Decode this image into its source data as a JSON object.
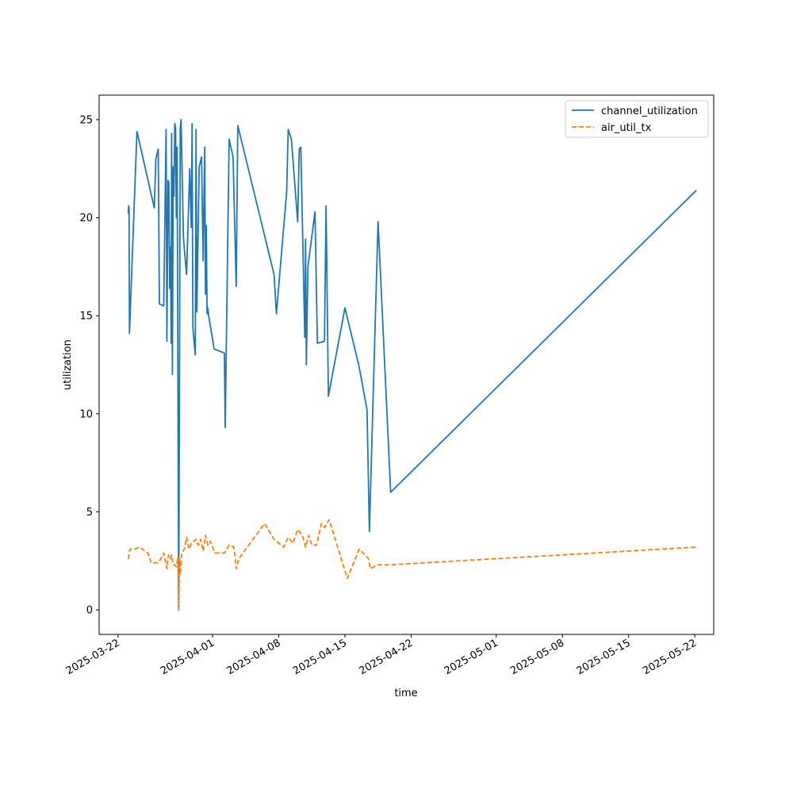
{
  "chart_data": {
    "type": "line",
    "title": "",
    "xlabel": "time",
    "ylabel": "utilization",
    "xlim": [
      "2025-03-20T00:00",
      "2025-05-24T00:00"
    ],
    "ylim": [
      -1.25,
      26.25
    ],
    "x_ticks": [
      "2025-03-22",
      "2025-04-01",
      "2025-04-08",
      "2025-04-15",
      "2025-04-22",
      "2025-05-01",
      "2025-05-08",
      "2025-05-15",
      "2025-05-22"
    ],
    "y_ticks": [
      0,
      5,
      10,
      15,
      20,
      25
    ],
    "grid": false,
    "legend": {
      "position": "top-right"
    },
    "series": [
      {
        "name": "channel_utilization",
        "color": "#1f77b4",
        "style": "solid",
        "points": [
          [
            "2025-03-23T02:00",
            20.2
          ],
          [
            "2025-03-23T03:00",
            20.6
          ],
          [
            "2025-03-23T04:00",
            20.5
          ],
          [
            "2025-03-23T05:00",
            14.1
          ],
          [
            "2025-03-24T00:00",
            24.4
          ],
          [
            "2025-03-25T20:00",
            20.5
          ],
          [
            "2025-03-26T00:00",
            23.0
          ],
          [
            "2025-03-26T06:00",
            23.5
          ],
          [
            "2025-03-26T09:00",
            15.6
          ],
          [
            "2025-03-26T20:00",
            15.5
          ],
          [
            "2025-03-27T02:00",
            24.5
          ],
          [
            "2025-03-27T04:00",
            13.7
          ],
          [
            "2025-03-27T07:00",
            21.9
          ],
          [
            "2025-03-27T09:00",
            21.8
          ],
          [
            "2025-03-27T11:00",
            16.4
          ],
          [
            "2025-03-27T13:00",
            18.5
          ],
          [
            "2025-03-27T15:00",
            13.6
          ],
          [
            "2025-03-27T16:00",
            24.3
          ],
          [
            "2025-03-27T18:00",
            12.0
          ],
          [
            "2025-03-27T20:00",
            22.6
          ],
          [
            "2025-03-27T22:00",
            21.1
          ],
          [
            "2025-03-28T00:00",
            24.8
          ],
          [
            "2025-03-28T02:00",
            24.6
          ],
          [
            "2025-03-28T04:00",
            20.0
          ],
          [
            "2025-03-28T06:00",
            23.6
          ],
          [
            "2025-03-28T10:00",
            0.0
          ],
          [
            "2025-03-28T14:00",
            24.6
          ],
          [
            "2025-03-28T16:00",
            25.0
          ],
          [
            "2025-03-28T22:00",
            19.0
          ],
          [
            "2025-03-29T02:00",
            18.0
          ],
          [
            "2025-03-29T06:00",
            17.1
          ],
          [
            "2025-03-29T14:00",
            22.5
          ],
          [
            "2025-03-29T18:00",
            19.5
          ],
          [
            "2025-03-29T20:00",
            24.8
          ],
          [
            "2025-03-29T22:00",
            14.4
          ],
          [
            "2025-03-30T04:00",
            13.0
          ],
          [
            "2025-03-30T06:00",
            24.5
          ],
          [
            "2025-03-30T08:00",
            15.2
          ],
          [
            "2025-03-30T14:00",
            22.6
          ],
          [
            "2025-03-30T20:00",
            23.1
          ],
          [
            "2025-03-31T00:00",
            17.8
          ],
          [
            "2025-03-31T04:00",
            23.6
          ],
          [
            "2025-03-31T06:00",
            16.1
          ],
          [
            "2025-03-31T08:00",
            19.6
          ],
          [
            "2025-03-31T10:00",
            15.1
          ],
          [
            "2025-03-31T12:00",
            15.4
          ],
          [
            "2025-03-31T14:00",
            15.0
          ],
          [
            "2025-04-01T04:00",
            13.3
          ],
          [
            "2025-04-02T06:00",
            13.1
          ],
          [
            "2025-04-02T08:00",
            9.3
          ],
          [
            "2025-04-02T18:00",
            24.0
          ],
          [
            "2025-04-03T04:00",
            23.1
          ],
          [
            "2025-04-03T12:00",
            16.5
          ],
          [
            "2025-04-03T16:00",
            24.7
          ],
          [
            "2025-04-07T12:00",
            17.1
          ],
          [
            "2025-04-07T18:00",
            15.1
          ],
          [
            "2025-04-08T20:00",
            21.3
          ],
          [
            "2025-04-09T00:00",
            24.5
          ],
          [
            "2025-04-09T08:00",
            24.0
          ],
          [
            "2025-04-10T00:00",
            19.8
          ],
          [
            "2025-04-10T04:00",
            23.5
          ],
          [
            "2025-04-10T08:00",
            23.6
          ],
          [
            "2025-04-10T18:00",
            13.9
          ],
          [
            "2025-04-10T20:00",
            18.9
          ],
          [
            "2025-04-10T22:00",
            12.5
          ],
          [
            "2025-04-11T02:00",
            17.5
          ],
          [
            "2025-04-11T20:00",
            20.3
          ],
          [
            "2025-04-12T02:00",
            13.6
          ],
          [
            "2025-04-12T20:00",
            13.7
          ],
          [
            "2025-04-13T00:00",
            20.6
          ],
          [
            "2025-04-13T06:00",
            10.9
          ],
          [
            "2025-04-15T00:00",
            15.4
          ],
          [
            "2025-04-16T12:00",
            12.4
          ],
          [
            "2025-04-17T08:00",
            10.2
          ],
          [
            "2025-04-17T14:00",
            4.0
          ],
          [
            "2025-04-18T12:00",
            19.8
          ],
          [
            "2025-04-19T20:00",
            6.0
          ],
          [
            "2025-05-22T04:00",
            21.4
          ]
        ]
      },
      {
        "name": "air_util_tx",
        "color": "#ff7f0e",
        "style": "dashed",
        "points": [
          [
            "2025-03-23T02:00",
            2.6
          ],
          [
            "2025-03-23T06:00",
            3.1
          ],
          [
            "2025-03-23T18:00",
            3.1
          ],
          [
            "2025-03-24T06:00",
            3.2
          ],
          [
            "2025-03-25T04:00",
            2.9
          ],
          [
            "2025-03-25T12:00",
            2.4
          ],
          [
            "2025-03-26T06:00",
            2.4
          ],
          [
            "2025-03-26T12:00",
            2.6
          ],
          [
            "2025-03-26T20:00",
            2.9
          ],
          [
            "2025-03-27T00:00",
            2.5
          ],
          [
            "2025-03-27T04:00",
            2.1
          ],
          [
            "2025-03-27T08:00",
            2.8
          ],
          [
            "2025-03-27T12:00",
            2.6
          ],
          [
            "2025-03-27T16:00",
            2.8
          ],
          [
            "2025-03-27T20:00",
            2.3
          ],
          [
            "2025-03-28T00:00",
            2.3
          ],
          [
            "2025-03-28T04:00",
            2.2
          ],
          [
            "2025-03-28T08:00",
            2.7
          ],
          [
            "2025-03-28T10:00",
            0.0
          ],
          [
            "2025-03-28T12:00",
            2.6
          ],
          [
            "2025-03-28T14:00",
            1.8
          ],
          [
            "2025-03-28T18:00",
            2.9
          ],
          [
            "2025-03-29T00:00",
            3.1
          ],
          [
            "2025-03-29T06:00",
            3.7
          ],
          [
            "2025-03-29T12:00",
            3.1
          ],
          [
            "2025-03-29T18:00",
            3.4
          ],
          [
            "2025-03-30T00:00",
            3.5
          ],
          [
            "2025-03-30T06:00",
            3.6
          ],
          [
            "2025-03-30T12:00",
            3.3
          ],
          [
            "2025-03-30T18:00",
            3.6
          ],
          [
            "2025-03-31T00:00",
            3.0
          ],
          [
            "2025-03-31T06:00",
            3.8
          ],
          [
            "2025-03-31T12:00",
            3.3
          ],
          [
            "2025-03-31T18:00",
            3.5
          ],
          [
            "2025-04-01T06:00",
            2.9
          ],
          [
            "2025-04-02T06:00",
            2.9
          ],
          [
            "2025-04-02T18:00",
            3.3
          ],
          [
            "2025-04-03T06:00",
            3.2
          ],
          [
            "2025-04-03T12:00",
            2.1
          ],
          [
            "2025-04-03T18:00",
            2.6
          ],
          [
            "2025-04-06T12:00",
            4.4
          ],
          [
            "2025-04-07T12:00",
            3.6
          ],
          [
            "2025-04-08T12:00",
            3.2
          ],
          [
            "2025-04-09T00:00",
            3.7
          ],
          [
            "2025-04-09T12:00",
            3.4
          ],
          [
            "2025-04-10T00:00",
            4.1
          ],
          [
            "2025-04-10T12:00",
            3.8
          ],
          [
            "2025-04-10T20:00",
            3.2
          ],
          [
            "2025-04-11T04:00",
            3.8
          ],
          [
            "2025-04-11T12:00",
            3.3
          ],
          [
            "2025-04-12T00:00",
            3.3
          ],
          [
            "2025-04-12T12:00",
            4.4
          ],
          [
            "2025-04-12T20:00",
            4.2
          ],
          [
            "2025-04-13T08:00",
            4.6
          ],
          [
            "2025-04-15T06:00",
            1.6
          ],
          [
            "2025-04-16T12:00",
            3.1
          ],
          [
            "2025-04-17T12:00",
            2.6
          ],
          [
            "2025-04-17T16:00",
            2.1
          ],
          [
            "2025-04-18T12:00",
            2.3
          ],
          [
            "2025-04-19T20:00",
            2.3
          ],
          [
            "2025-05-22T04:00",
            3.2
          ]
        ]
      }
    ]
  }
}
